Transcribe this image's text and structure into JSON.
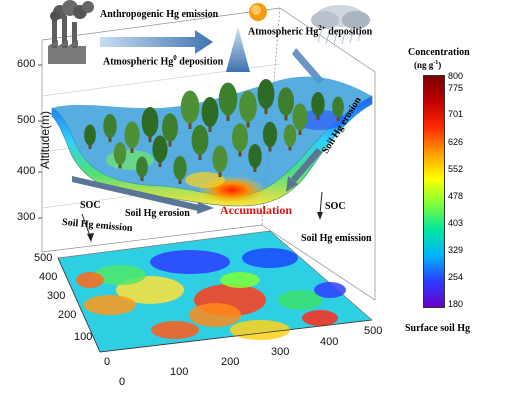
{
  "labels": {
    "anthropogenic": "Anthropogenic Hg emission",
    "atm_hg0_prefix": "Atmospheric Hg",
    "atm_hg0_sup": "0",
    "atm_hg0_suffix": " deposition",
    "atm_hg2_prefix": "Atmospheric Hg",
    "atm_hg2_sup": "2+",
    "atm_hg2_suffix": " deposition",
    "soil_erosion_right": "Soil Hg erosion",
    "soil_erosion_left": "Soil Hg erosion",
    "soc_left": "SOC",
    "soc_right": "SOC",
    "soil_emission_left": "Soil Hg emission",
    "soil_emission_right": "Soil Hg emission",
    "accumulation": "Accumulation",
    "surface_soil": "Surface soil Hg"
  },
  "altitude_axis": {
    "label": "Altitude(m)",
    "ticks": [
      "600",
      "500",
      "400",
      "300"
    ]
  },
  "map_axes": {
    "y_ticks": [
      "500",
      "400",
      "300",
      "200",
      "100",
      "0"
    ],
    "x_ticks": [
      "0",
      "100",
      "200",
      "300",
      "400",
      "500"
    ]
  },
  "colorbar": {
    "title": "Concentration",
    "unit_prefix": "(ng g",
    "unit_sup": "-1",
    "unit_suffix": ")",
    "ticks": [
      "800",
      "775",
      "701",
      "626",
      "552",
      "478",
      "403",
      "329",
      "254",
      "180"
    ],
    "colors": [
      "#7a0000",
      "#c00000",
      "#ff2a00",
      "#ff9a00",
      "#ffff00",
      "#7dff3a",
      "#00e6a0",
      "#00b4ff",
      "#2a3cff",
      "#6a00c8"
    ]
  },
  "accent": {
    "accumulation_color": "#e01010",
    "arrow_color": "#4a7fb8"
  }
}
